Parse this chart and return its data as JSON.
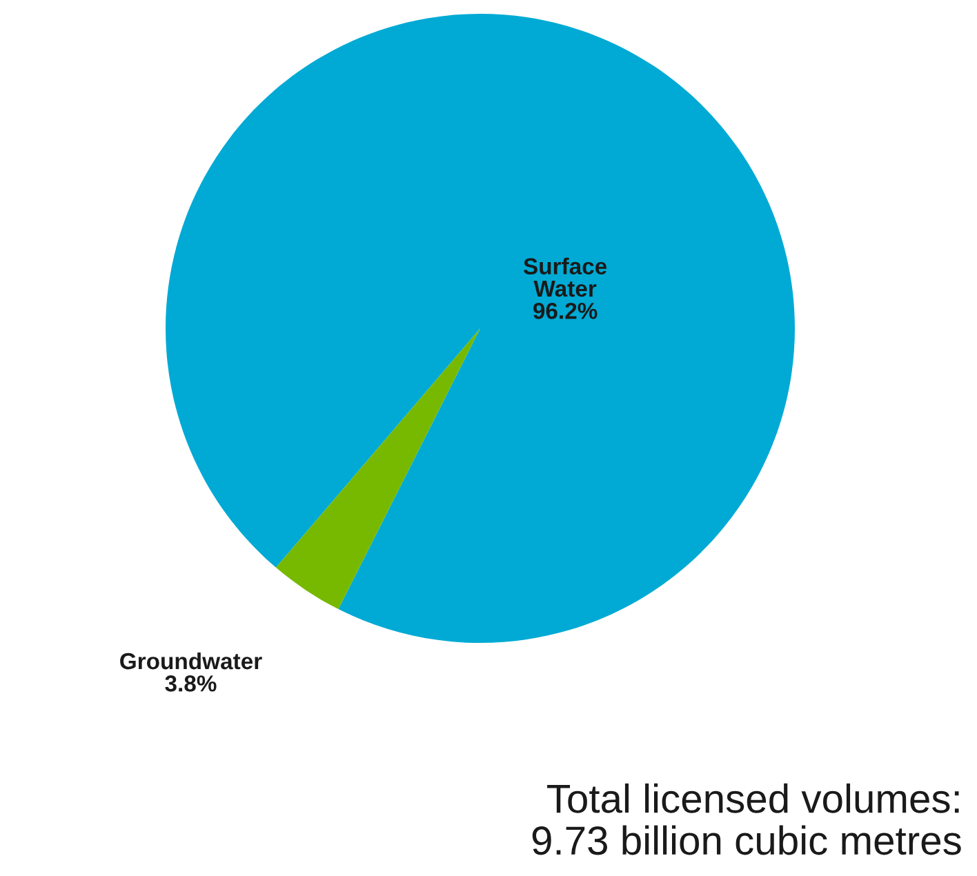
{
  "chart_data": {
    "type": "pie",
    "categories": [
      "Surface Water",
      "Groundwater"
    ],
    "values": [
      96.2,
      3.8
    ],
    "colors": [
      "#00aad4",
      "#76b900"
    ],
    "value_labels": [
      "96.2%",
      "3.8%"
    ],
    "annotations": [
      "Total licensed volumes:\n9.73 billion cubic metres"
    ]
  }
}
